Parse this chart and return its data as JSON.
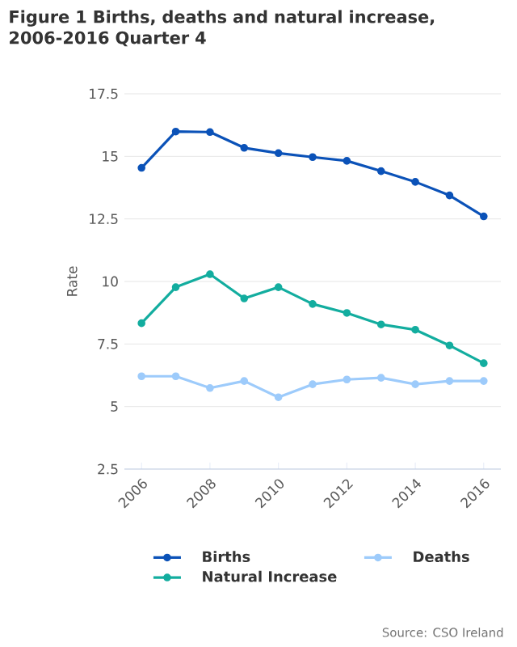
{
  "chart_data": {
    "type": "line",
    "title": "Figure 1 Births, deaths and natural increase, 2006-2016 Quarter 4",
    "ylabel": "Rate",
    "x": [
      2006,
      2007,
      2008,
      2009,
      2010,
      2011,
      2012,
      2013,
      2014,
      2015,
      2016
    ],
    "series": [
      {
        "name": "Births",
        "color": "#0b52b8",
        "values": [
          14.54,
          15.99,
          15.97,
          15.34,
          15.13,
          14.97,
          14.82,
          14.41,
          13.98,
          13.44,
          12.6
        ]
      },
      {
        "name": "Deaths",
        "color": "#9dcbfb",
        "values": [
          6.21,
          6.21,
          5.74,
          6.02,
          5.37,
          5.89,
          6.08,
          6.15,
          5.89,
          6.02,
          6.02
        ]
      },
      {
        "name": "Natural Increase",
        "color": "#13ad9f",
        "values": [
          8.33,
          9.77,
          10.29,
          9.32,
          9.77,
          9.1,
          8.74,
          8.28,
          8.07,
          7.44,
          6.73
        ]
      }
    ],
    "xlim": [
      2005.5,
      2016.5
    ],
    "xticks": [
      2006,
      2008,
      2010,
      2012,
      2014,
      2016
    ],
    "ylim": [
      2.5,
      17.5
    ],
    "yticks": [
      2.5,
      5,
      7.5,
      10,
      12.5,
      15,
      17.5
    ],
    "grid": "y",
    "legend": "bottom",
    "marker": "circle",
    "line_style": "solid",
    "annotations": [
      "Source: CSO Ireland"
    ]
  }
}
